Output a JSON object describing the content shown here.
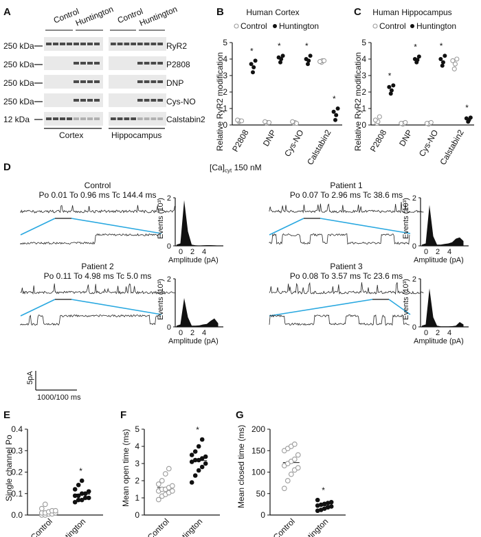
{
  "panels": {
    "A": {
      "label": "A",
      "columns": [
        "Control",
        "Huntington"
      ],
      "rows": [
        {
          "mw": "",
          "name": "RyR2"
        },
        {
          "mw": "250 kDa",
          "name": "P2808"
        },
        {
          "mw": "250 kDa",
          "name": "DNP"
        },
        {
          "mw": "250 kDa",
          "name": "Cys-NO"
        },
        {
          "mw": "12 kDa",
          "name": "Calstabin2"
        }
      ],
      "ryr2_mw": "250 kDa",
      "tissues": [
        "Cortex",
        "Hippocampus"
      ]
    },
    "D": {
      "label": "D",
      "condition": "[Ca]",
      "condition_sub": "cyt",
      "condition_value": " 150 nM",
      "recordings": [
        {
          "title": "Control",
          "stats": "Po 0.01 To 0.96 ms Tc 144.4 ms"
        },
        {
          "title": "Patient 1",
          "stats": "Po 0.07 To 2.96 ms Tc 38.6 ms"
        },
        {
          "title": "Patient 2",
          "stats": "Po 0.11 To 4.98 ms Tc 5.0 ms"
        },
        {
          "title": "Patient 3",
          "stats": "Po 0.08 To 3.57 ms Tc 23.6 ms"
        }
      ],
      "hist_ylabel": "Events (10³)",
      "hist_xlabel": "Amplitude (pA)",
      "hist_yticks": [
        "0",
        "2"
      ],
      "hist_xticks": [
        "0",
        "2",
        "4"
      ],
      "scale_y": "5pA",
      "scale_x": "1000/100 ms"
    }
  },
  "chart_data": [
    {
      "panel": "B",
      "type": "scatter",
      "title": "Human Cortex",
      "legend": [
        "Control",
        "Huntington"
      ],
      "ylabel": "Relative RyR2 modification",
      "ylim": [
        0,
        5
      ],
      "yticks": [
        "0",
        "1",
        "2",
        "3",
        "4",
        "5"
      ],
      "categories": [
        "P2808",
        "DNP",
        "Cys-NO",
        "Calstabin2"
      ],
      "series": [
        {
          "name": "Control",
          "values": [
            [
              0.2,
              0.25,
              0.3,
              0.25
            ],
            [
              0.1,
              0.15,
              0.2,
              0.15
            ],
            [
              0.1,
              0.15,
              0.2,
              0.1
            ],
            [
              3.8,
              3.9,
              3.85,
              3.9
            ]
          ]
        },
        {
          "name": "Huntington",
          "values": [
            [
              3.2,
              3.5,
              3.7,
              3.9
            ],
            [
              3.8,
              4.0,
              4.1,
              4.2
            ],
            [
              3.7,
              3.9,
              4.0,
              4.2
            ],
            [
              0.3,
              0.6,
              0.8,
              1.0
            ]
          ]
        }
      ],
      "significance": [
        "*",
        "*",
        "*",
        "*"
      ]
    },
    {
      "panel": "C",
      "type": "scatter",
      "title": "Human Hippocampus",
      "legend": [
        "Control",
        "Huntington"
      ],
      "ylabel": "Relative RyR2 modification",
      "ylim": [
        0,
        5
      ],
      "yticks": [
        "0",
        "1",
        "2",
        "3",
        "4",
        "5"
      ],
      "categories": [
        "P2808",
        "DNP",
        "Cys-NO",
        "Calstabin2"
      ],
      "series": [
        {
          "name": "Control",
          "values": [
            [
              0.1,
              0.2,
              0.3,
              0.5
            ],
            [
              0.05,
              0.1,
              0.1,
              0.15
            ],
            [
              0.05,
              0.1,
              0.1,
              0.15
            ],
            [
              3.4,
              3.7,
              3.9,
              4.0
            ]
          ]
        },
        {
          "name": "Huntington",
          "values": [
            [
              1.9,
              2.1,
              2.3,
              2.4
            ],
            [
              3.8,
              3.95,
              4.0,
              4.15
            ],
            [
              3.6,
              3.8,
              4.0,
              4.2
            ],
            [
              0.2,
              0.3,
              0.4,
              0.45
            ]
          ]
        }
      ],
      "significance": [
        "*",
        "*",
        "*",
        "*"
      ]
    },
    {
      "panel": "E",
      "type": "scatter",
      "ylabel": "Single channel Po",
      "ylim": [
        0,
        0.4
      ],
      "yticks": [
        "0.0",
        "0.1",
        "0.2",
        "0.3",
        "0.4"
      ],
      "categories": [
        "Control",
        "Huntington"
      ],
      "series": [
        {
          "name": "Control",
          "values": [
            0.0,
            0.0,
            0.005,
            0.005,
            0.01,
            0.01,
            0.01,
            0.015,
            0.02,
            0.02,
            0.03,
            0.05
          ]
        },
        {
          "name": "Huntington",
          "values": [
            0.06,
            0.07,
            0.07,
            0.08,
            0.08,
            0.09,
            0.09,
            0.1,
            0.1,
            0.11,
            0.12,
            0.14,
            0.16
          ]
        }
      ],
      "significance": [
        "",
        "*"
      ]
    },
    {
      "panel": "F",
      "type": "scatter",
      "ylabel": "Mean open time (ms)",
      "ylim": [
        0,
        5
      ],
      "yticks": [
        "0",
        "1",
        "2",
        "3",
        "4",
        "5"
      ],
      "categories": [
        "Control",
        "Huntington"
      ],
      "series": [
        {
          "name": "Control",
          "values": [
            0.9,
            1.1,
            1.2,
            1.3,
            1.4,
            1.4,
            1.5,
            1.5,
            1.6,
            1.7,
            1.8,
            2.0,
            2.4,
            2.7
          ]
        },
        {
          "name": "Huntington",
          "values": [
            1.9,
            2.3,
            2.6,
            2.8,
            3.0,
            3.1,
            3.2,
            3.2,
            3.3,
            3.4,
            3.5,
            3.7,
            4.0,
            4.4
          ]
        }
      ],
      "significance": [
        "",
        "*"
      ]
    },
    {
      "panel": "G",
      "type": "scatter",
      "ylabel": "Mean closed time (ms)",
      "ylim": [
        0,
        200
      ],
      "yticks": [
        "0",
        "50",
        "100",
        "150",
        "200"
      ],
      "categories": [
        "Control",
        "Huntington"
      ],
      "series": [
        {
          "name": "Control",
          "values": [
            62,
            80,
            95,
            105,
            110,
            115,
            120,
            125,
            130,
            140,
            150,
            155,
            160,
            165
          ]
        },
        {
          "name": "Huntington",
          "values": [
            10,
            12,
            15,
            18,
            20,
            22,
            24,
            26,
            28,
            30,
            35
          ]
        }
      ],
      "significance": [
        "",
        "*"
      ]
    }
  ]
}
